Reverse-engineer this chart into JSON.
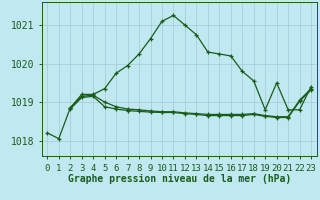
{
  "bg_color": "#c0e8f0",
  "line_color": "#1a5c1a",
  "grid_color": "#a8c8d8",
  "ylim": [
    1017.6,
    1021.6
  ],
  "y_ticks": [
    1018,
    1019,
    1020,
    1021
  ],
  "x_ticks": [
    0,
    1,
    2,
    3,
    4,
    5,
    6,
    7,
    8,
    9,
    10,
    11,
    12,
    13,
    14,
    15,
    16,
    17,
    18,
    19,
    20,
    21,
    22,
    23
  ],
  "series1_y": [
    1018.2,
    1018.05,
    1018.85,
    1019.2,
    1019.2,
    1019.35,
    1019.75,
    1019.95,
    1020.25,
    1020.65,
    1021.1,
    1021.25,
    1021.0,
    1020.75,
    1020.3,
    1020.25,
    1020.2,
    1019.8,
    1019.55,
    1018.8,
    1019.5,
    1018.8,
    1018.8,
    1019.4
  ],
  "series2_y": [
    null,
    null,
    1018.85,
    1019.15,
    1019.18,
    1019.0,
    1018.88,
    1018.82,
    1018.8,
    1018.77,
    1018.75,
    1018.75,
    1018.72,
    1018.7,
    1018.68,
    1018.68,
    1018.68,
    1018.68,
    1018.7,
    1018.65,
    1018.62,
    1018.62,
    1019.05,
    1019.35
  ],
  "series3_y": [
    null,
    null,
    1018.82,
    1019.12,
    1019.15,
    1018.88,
    1018.82,
    1018.78,
    1018.76,
    1018.74,
    1018.73,
    1018.73,
    1018.7,
    1018.68,
    1018.65,
    1018.65,
    1018.65,
    1018.65,
    1018.68,
    1018.63,
    1018.6,
    1018.6,
    1019.02,
    1019.32
  ],
  "xlabel": "Graphe pression niveau de la mer (hPa)",
  "tick_fontsize": 6.5
}
